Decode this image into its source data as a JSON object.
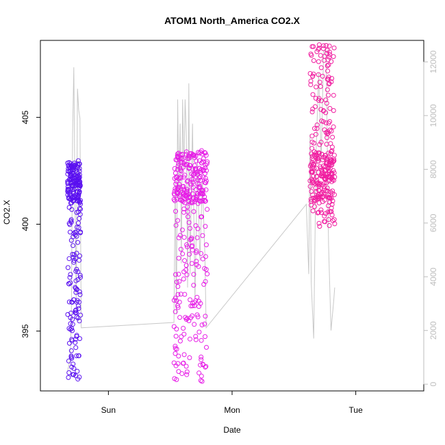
{
  "chart_data": {
    "type": "scatter",
    "title": "ATOM1 North_America CO2.X",
    "xlabel": "Date",
    "ylabel": "CO2.X",
    "x_ticks": [
      "Sun",
      "Mon",
      "Tue"
    ],
    "y_left": {
      "ticks": [
        395,
        400,
        405
      ],
      "lim": [
        392.2,
        408.6
      ]
    },
    "y_right": {
      "ticks": [
        0,
        2000,
        4000,
        6000,
        8000,
        10000,
        12000
      ],
      "lim": [
        -250,
        12800
      ],
      "color": "#bdbdbd"
    },
    "x_lim_days": [
      -0.55,
      2.55
    ],
    "grid": false,
    "legend": "none",
    "series": [
      {
        "kind": "points",
        "color": "#5a10f0",
        "clusters": [
          {
            "x_range": [
              -0.33,
              -0.225
            ],
            "y_range": [
              392.7,
              403.0
            ],
            "count": 260,
            "dense_high": [
              401.0,
              402.9
            ]
          }
        ]
      },
      {
        "kind": "points",
        "color": "#e61ee6",
        "clusters": [
          {
            "x_range": [
              0.53,
              0.8
            ],
            "y_range": [
              392.6,
              403.5
            ],
            "count": 340,
            "dense_high": [
              401.0,
              403.4
            ]
          }
        ]
      },
      {
        "kind": "points",
        "color": "#f01ea0",
        "clusters": [
          {
            "x_range": [
              1.63,
              1.83
            ],
            "y_range": [
              399.9,
              408.4
            ],
            "count": 300,
            "dense_high": [
              401.0,
              403.4
            ]
          }
        ]
      },
      {
        "kind": "line",
        "axis": "right",
        "color": "#c8c8c8",
        "points": [
          [
            -0.33,
            500
          ],
          [
            -0.31,
            900
          ],
          [
            -0.3,
            2500
          ],
          [
            -0.29,
            9300
          ],
          [
            -0.28,
            11800
          ],
          [
            -0.27,
            6800
          ],
          [
            -0.26,
            3000
          ],
          [
            -0.25,
            11000
          ],
          [
            -0.24,
            10200
          ],
          [
            -0.23,
            9900
          ],
          [
            -0.22,
            2100
          ],
          [
            0.53,
            2300
          ],
          [
            0.54,
            7500
          ],
          [
            0.55,
            2600
          ],
          [
            0.56,
            10600
          ],
          [
            0.57,
            7000
          ],
          [
            0.58,
            9700
          ],
          [
            0.59,
            4500
          ],
          [
            0.6,
            10600
          ],
          [
            0.61,
            8000
          ],
          [
            0.62,
            10600
          ],
          [
            0.63,
            9200
          ],
          [
            0.64,
            3600
          ],
          [
            0.65,
            11200
          ],
          [
            0.66,
            4100
          ],
          [
            0.68,
            9700
          ],
          [
            0.7,
            3200
          ],
          [
            0.72,
            8300
          ],
          [
            0.74,
            4600
          ],
          [
            0.76,
            7600
          ],
          [
            0.78,
            4800
          ],
          [
            0.79,
            2100
          ],
          [
            1.6,
            6700
          ],
          [
            1.62,
            4100
          ],
          [
            1.63,
            9300
          ],
          [
            1.64,
            3800
          ],
          [
            1.66,
            1700
          ],
          [
            1.68,
            8700
          ],
          [
            1.7,
            11600
          ],
          [
            1.72,
            8300
          ],
          [
            1.74,
            12400
          ],
          [
            1.76,
            12400
          ],
          [
            1.78,
            5200
          ],
          [
            1.8,
            2000
          ],
          [
            1.82,
            3000
          ],
          [
            1.83,
            3600
          ]
        ]
      }
    ]
  }
}
